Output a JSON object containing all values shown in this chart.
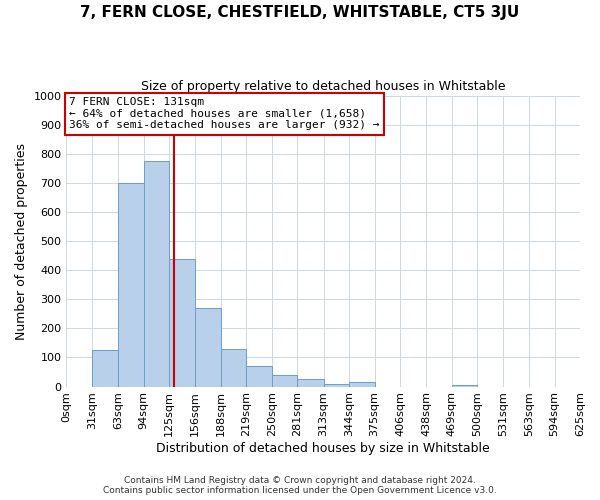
{
  "title": "7, FERN CLOSE, CHESTFIELD, WHITSTABLE, CT5 3JU",
  "subtitle": "Size of property relative to detached houses in Whitstable",
  "xlabel": "Distribution of detached houses by size in Whitstable",
  "ylabel": "Number of detached properties",
  "bar_edges": [
    0,
    31,
    63,
    94,
    125,
    156,
    188,
    219,
    250,
    281,
    313,
    344,
    375,
    406,
    438,
    469,
    500,
    531,
    563,
    594,
    625
  ],
  "bar_heights": [
    0,
    125,
    700,
    775,
    440,
    270,
    130,
    70,
    40,
    25,
    10,
    15,
    0,
    0,
    0,
    5,
    0,
    0,
    0,
    0
  ],
  "bar_color": "#b8d0ea",
  "bar_edge_color": "#6a9fc8",
  "property_line_x": 131,
  "annotation_title": "7 FERN CLOSE: 131sqm",
  "annotation_line1": "← 64% of detached houses are smaller (1,658)",
  "annotation_line2": "36% of semi-detached houses are larger (932) →",
  "annotation_box_color": "#ffffff",
  "annotation_box_edge_color": "#cc0000",
  "property_line_color": "#cc0000",
  "ylim": [
    0,
    1000
  ],
  "xlim": [
    0,
    625
  ],
  "tick_labels": [
    "0sqm",
    "31sqm",
    "63sqm",
    "94sqm",
    "125sqm",
    "156sqm",
    "188sqm",
    "219sqm",
    "250sqm",
    "281sqm",
    "313sqm",
    "344sqm",
    "375sqm",
    "406sqm",
    "438sqm",
    "469sqm",
    "500sqm",
    "531sqm",
    "563sqm",
    "594sqm",
    "625sqm"
  ],
  "tick_positions": [
    0,
    31,
    63,
    94,
    125,
    156,
    188,
    219,
    250,
    281,
    313,
    344,
    375,
    406,
    438,
    469,
    500,
    531,
    563,
    594,
    625
  ],
  "footer_line1": "Contains HM Land Registry data © Crown copyright and database right 2024.",
  "footer_line2": "Contains public sector information licensed under the Open Government Licence v3.0.",
  "bg_color": "#ffffff",
  "grid_color": "#ccd6e8"
}
